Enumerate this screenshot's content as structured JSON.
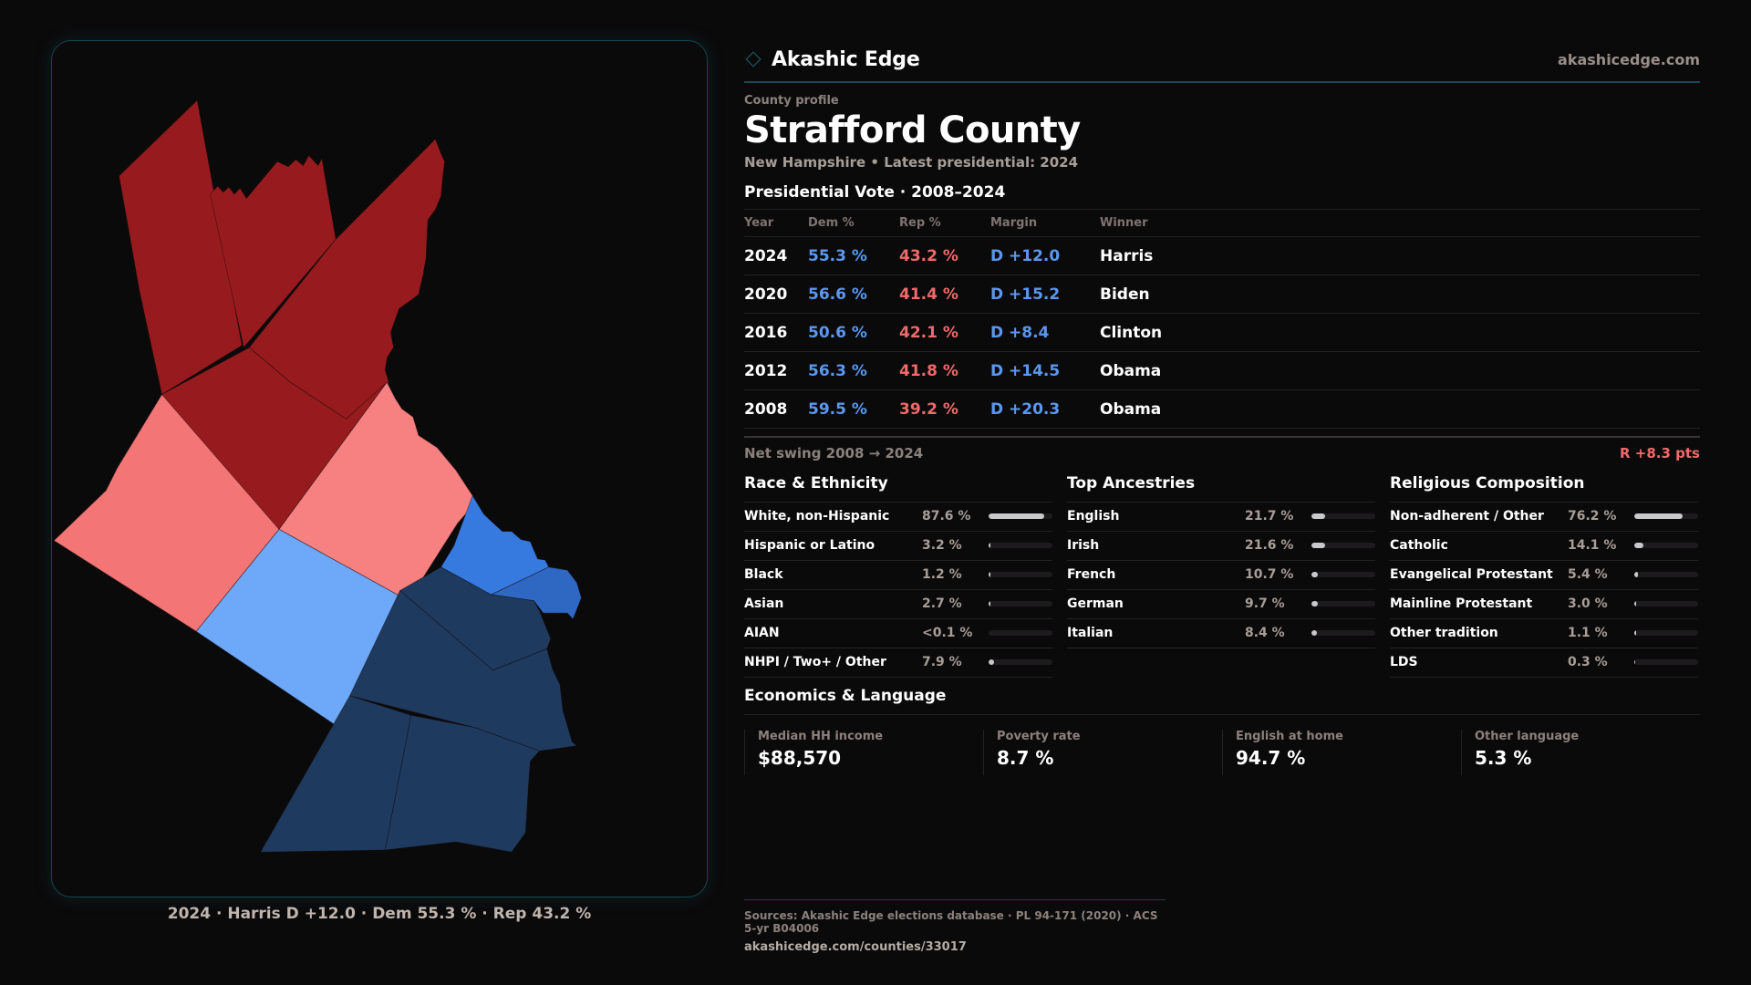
{
  "brand": {
    "name": "Akashic Edge",
    "site": "akashicedge.com",
    "icon": "diamond-icon",
    "accent_color": "#164a57"
  },
  "profile": {
    "eyebrow": "County profile",
    "title": "Strafford County",
    "subtitle": "New Hampshire • Latest presidential: 2024"
  },
  "colors": {
    "dem": "#5a98f0",
    "rep": "#ef6a6a",
    "map_strong_rep": "#971b1e",
    "map_lean_rep": "#f47575",
    "map_lean_rep_2": "#f78181",
    "map_lean_dem": "#6ea8f8",
    "map_dem_mid": "#367ae0",
    "map_dem_mid2": "#2f68c2",
    "map_strong_dem": "#1f3a5f"
  },
  "presidential": {
    "heading": "Presidential Vote · 2008–2024",
    "columns": [
      "Year",
      "Dem %",
      "Rep %",
      "Margin",
      "Winner"
    ],
    "rows": [
      {
        "year": "2024",
        "dem": "55.3 %",
        "rep": "43.2 %",
        "margin": "D +12.0",
        "winner": "Harris"
      },
      {
        "year": "2020",
        "dem": "56.6 %",
        "rep": "41.4 %",
        "margin": "D +15.2",
        "winner": "Biden"
      },
      {
        "year": "2016",
        "dem": "50.6 %",
        "rep": "42.1 %",
        "margin": "D +8.4",
        "winner": "Clinton"
      },
      {
        "year": "2012",
        "dem": "56.3 %",
        "rep": "41.8 %",
        "margin": "D +14.5",
        "winner": "Obama"
      },
      {
        "year": "2008",
        "dem": "59.5 %",
        "rep": "39.2 %",
        "margin": "D +20.3",
        "winner": "Obama"
      }
    ],
    "swing_label": "Net swing 2008 → 2024",
    "swing_value": "R +8.3 pts"
  },
  "race": {
    "heading": "Race & Ethnicity",
    "items": [
      {
        "label": "White, non-Hispanic",
        "value": "87.6 %",
        "pct": 87.6
      },
      {
        "label": "Hispanic or Latino",
        "value": "3.2 %",
        "pct": 3.2
      },
      {
        "label": "Black",
        "value": "1.2 %",
        "pct": 1.2
      },
      {
        "label": "Asian",
        "value": "2.7 %",
        "pct": 2.7
      },
      {
        "label": "AIAN",
        "value": "<0.1 %",
        "pct": 0.05
      },
      {
        "label": "NHPI / Two+ / Other",
        "value": "7.9 %",
        "pct": 7.9
      }
    ]
  },
  "ancestry": {
    "heading": "Top Ancestries",
    "items": [
      {
        "label": "English",
        "value": "21.7 %",
        "pct": 21.7
      },
      {
        "label": "Irish",
        "value": "21.6 %",
        "pct": 21.6
      },
      {
        "label": "French",
        "value": "10.7 %",
        "pct": 10.7
      },
      {
        "label": "German",
        "value": "9.7 %",
        "pct": 9.7
      },
      {
        "label": "Italian",
        "value": "8.4 %",
        "pct": 8.4
      }
    ]
  },
  "religion": {
    "heading": "Religious Composition",
    "items": [
      {
        "label": "Non-adherent / Other",
        "value": "76.2 %",
        "pct": 76.2
      },
      {
        "label": "Catholic",
        "value": "14.1 %",
        "pct": 14.1
      },
      {
        "label": "Evangelical Protestant",
        "value": "5.4 %",
        "pct": 5.4
      },
      {
        "label": "Mainline Protestant",
        "value": "3.0 %",
        "pct": 3.0
      },
      {
        "label": "Other tradition",
        "value": "1.1 %",
        "pct": 1.1
      },
      {
        "label": "LDS",
        "value": "0.3 %",
        "pct": 0.3
      }
    ]
  },
  "economics": {
    "heading": "Economics & Language",
    "cards": [
      {
        "label": "Median HH income",
        "value": "$88,570"
      },
      {
        "label": "Poverty rate",
        "value": "8.7 %"
      },
      {
        "label": "English at home",
        "value": "94.7 %"
      },
      {
        "label": "Other language",
        "value": "5.3 %"
      }
    ]
  },
  "map": {
    "caption": "2024 · Harris D +12.0 · Dem 55.3 % · Rep 43.2 %",
    "towns": [
      {
        "name": "town-1",
        "lean": "strong_rep"
      },
      {
        "name": "town-2",
        "lean": "strong_rep"
      },
      {
        "name": "town-3",
        "lean": "strong_rep"
      },
      {
        "name": "town-4",
        "lean": "strong_rep"
      },
      {
        "name": "town-5",
        "lean": "lean_rep"
      },
      {
        "name": "town-6",
        "lean": "lean_rep_2"
      },
      {
        "name": "town-7",
        "lean": "lean_dem"
      },
      {
        "name": "town-8",
        "lean": "dem_mid"
      },
      {
        "name": "town-9",
        "lean": "dem_mid2"
      },
      {
        "name": "town-10",
        "lean": "strong_dem"
      },
      {
        "name": "town-11",
        "lean": "strong_dem"
      },
      {
        "name": "town-12",
        "lean": "strong_dem"
      },
      {
        "name": "town-13",
        "lean": "strong_dem"
      }
    ]
  },
  "footer": {
    "sources": "Sources: Akashic Edge elections database · PL 94-171 (2020) · ACS 5-yr B04006",
    "url": "akashicedge.com/counties/33017"
  }
}
